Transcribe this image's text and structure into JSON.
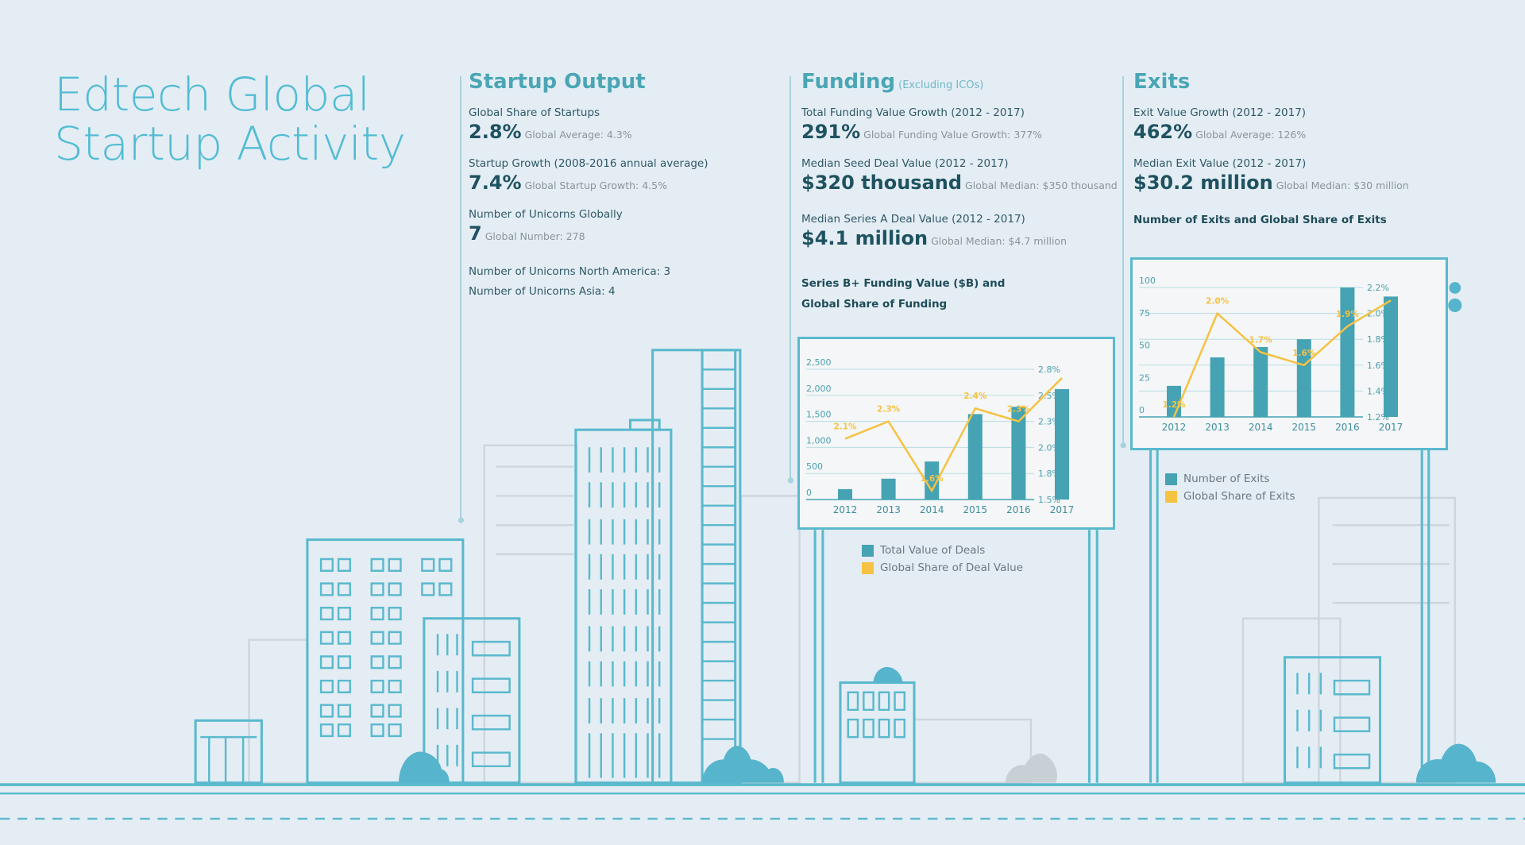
{
  "title": {
    "line1": "Edtech Global",
    "line2": "Startup Activity"
  },
  "colors": {
    "accent": "#52bcd3",
    "bar": "#45a3b3",
    "line": "#f5c242",
    "dark_text": "#1f5260"
  },
  "startup_output": {
    "heading": "Startup Output",
    "stats": [
      {
        "label": "Global Share of Startups",
        "value": "2.8%",
        "compare": "Global Average: 4.3%"
      },
      {
        "label": "Startup Growth (2008-2016 annual average)",
        "value": "7.4%",
        "compare": "Global Startup Growth: 4.5%"
      },
      {
        "label": "Number of Unicorns Globally",
        "value": "7",
        "compare": "Global Number: 278"
      }
    ],
    "extra": [
      "Number of Unicorns North America: 3",
      "Number of Unicorns Asia: 4"
    ]
  },
  "funding": {
    "heading": "Funding",
    "subheading": "(Excluding ICOs)",
    "stats": [
      {
        "label": "Total Funding Value Growth (2012 - 2017)",
        "value": "291%",
        "compare": "Global Funding Value Growth: 377%"
      },
      {
        "label": "Median Seed Deal Value (2012 - 2017)",
        "value": "$320 thousand",
        "compare": "Global Median: $350 thousand"
      },
      {
        "label": "Median Series A Deal Value (2012 - 2017)",
        "value": "$4.1 million",
        "compare": "Global Median: $4.7 million"
      }
    ],
    "chart_title_1": "Series B+ Funding Value ($B) and",
    "chart_title_2": "Global Share of Funding"
  },
  "exits": {
    "heading": "Exits",
    "stats": [
      {
        "label": "Exit Value Growth (2012 - 2017)",
        "value": "462%",
        "compare": "Global Average: 126%"
      },
      {
        "label": "Median Exit Value (2012 - 2017)",
        "value": "$30.2 million",
        "compare": "Global Median: $30 million"
      }
    ],
    "chart_title": "Number of Exits and Global Share of Exits"
  },
  "chart_data": [
    {
      "type": "bar+line",
      "title": "Series B+ Funding Value ($B) and Global Share of Funding",
      "categories": [
        "2012",
        "2013",
        "2014",
        "2015",
        "2016",
        "2017"
      ],
      "series": [
        {
          "name": "Total Value of Deals",
          "type": "bar",
          "axis": "left",
          "values": [
            200,
            400,
            730,
            1640,
            1780,
            2120
          ]
        },
        {
          "name": "Global Share of Deal Value",
          "type": "line",
          "axis": "right",
          "values": [
            2.1,
            2.3,
            1.6,
            2.4,
            2.3,
            2.7
          ],
          "labels": [
            "2.1%",
            "2.3%",
            "1.6%",
            "2.4%",
            "2.3%",
            ""
          ]
        }
      ],
      "left_ticks": [
        "0",
        "500",
        "1,000",
        "1,500",
        "2,000",
        "2,500"
      ],
      "left_tick_values": [
        0,
        500,
        1000,
        1500,
        2000,
        2500
      ],
      "right_ticks": [
        "1.5%",
        "1.8%",
        "2.0%",
        "2.3%",
        "2.5%",
        "2.8%"
      ],
      "right_tick_values": [
        1.5,
        1.8,
        2.0,
        2.3,
        2.5,
        2.8
      ],
      "ylim": [
        0,
        2500
      ],
      "grid": true,
      "legend_position": "bottom-left"
    },
    {
      "type": "bar+line",
      "title": "Number of Exits and Global Share of Exits",
      "categories": [
        "2012",
        "2013",
        "2014",
        "2015",
        "2016",
        "2017"
      ],
      "series": [
        {
          "name": "Number of Exits",
          "type": "bar",
          "axis": "left",
          "values": [
            24,
            46,
            54,
            60,
            100,
            93
          ]
        },
        {
          "name": "Global Share of Exits",
          "type": "line",
          "axis": "right",
          "values": [
            1.2,
            2.0,
            1.7,
            1.6,
            1.9,
            2.1
          ],
          "labels": [
            "1.2%",
            "2.0%",
            "1.7%",
            "1.6%",
            "1.9%",
            ""
          ]
        }
      ],
      "left_ticks": [
        "0",
        "25",
        "50",
        "75",
        "100"
      ],
      "left_tick_values": [
        0,
        25,
        50,
        75,
        100
      ],
      "right_ticks": [
        "1.2%",
        "1.4%",
        "1.6%",
        "1.8%",
        "2.0%",
        "2.2%"
      ],
      "right_tick_values": [
        1.2,
        1.4,
        1.6,
        1.8,
        2.0,
        2.2
      ],
      "ylim": [
        0,
        100
      ],
      "grid": true,
      "legend_position": "bottom-left"
    }
  ]
}
